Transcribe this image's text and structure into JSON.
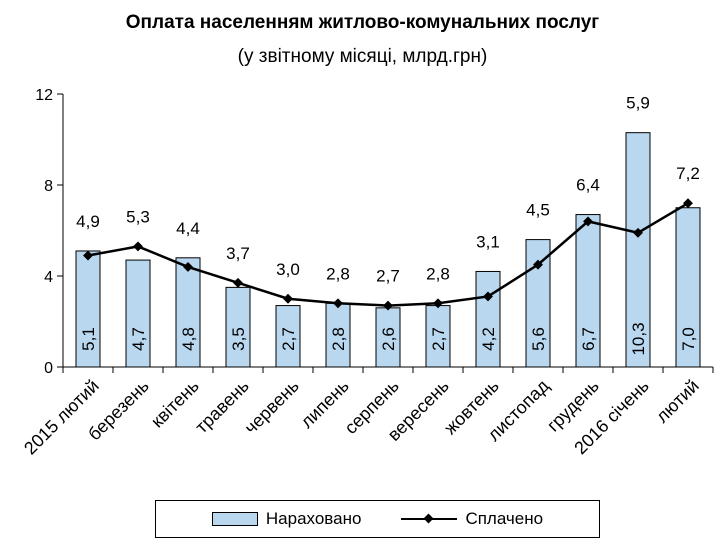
{
  "chart_data": {
    "type": "bar",
    "title": "Оплата населенням житлово-комунальних послуг",
    "subtitle": "(у звітному місяці, млрд.грн)",
    "categories": [
      "2015 лютий",
      "березень",
      "квітень",
      "травень",
      "червень",
      "липень",
      "серпень",
      "вересень",
      "жовтень",
      "листопад",
      "грудень",
      "2016 січень",
      "лютий"
    ],
    "series": [
      {
        "name": "Нараховано",
        "type": "bar",
        "color": "#b9d7ef",
        "values": [
          5.1,
          4.7,
          4.8,
          3.5,
          2.7,
          2.8,
          2.6,
          2.7,
          4.2,
          5.6,
          6.7,
          10.3,
          7.0
        ],
        "labels": [
          "5,1",
          "4,7",
          "4,8",
          "3,5",
          "2,7",
          "2,8",
          "2,6",
          "2,7",
          "4,2",
          "5,6",
          "6,7",
          "10,3",
          "7,0"
        ]
      },
      {
        "name": "Сплачено",
        "type": "line",
        "color": "#000000",
        "values": [
          4.9,
          5.3,
          4.4,
          3.7,
          3.0,
          2.8,
          2.7,
          2.8,
          3.1,
          4.5,
          6.4,
          5.9,
          7.2
        ],
        "labels": [
          "4,9",
          "5,3",
          "4,4",
          "3,7",
          "3,0",
          "2,8",
          "2,7",
          "2,8",
          "3,1",
          "4,5",
          "6,4",
          "5,9",
          "7,2"
        ]
      }
    ],
    "ylim": [
      0,
      12
    ],
    "yticks": [
      0,
      4,
      8,
      12
    ],
    "xlabel": "",
    "ylabel": "",
    "grid": false,
    "legend_position": "bottom"
  }
}
